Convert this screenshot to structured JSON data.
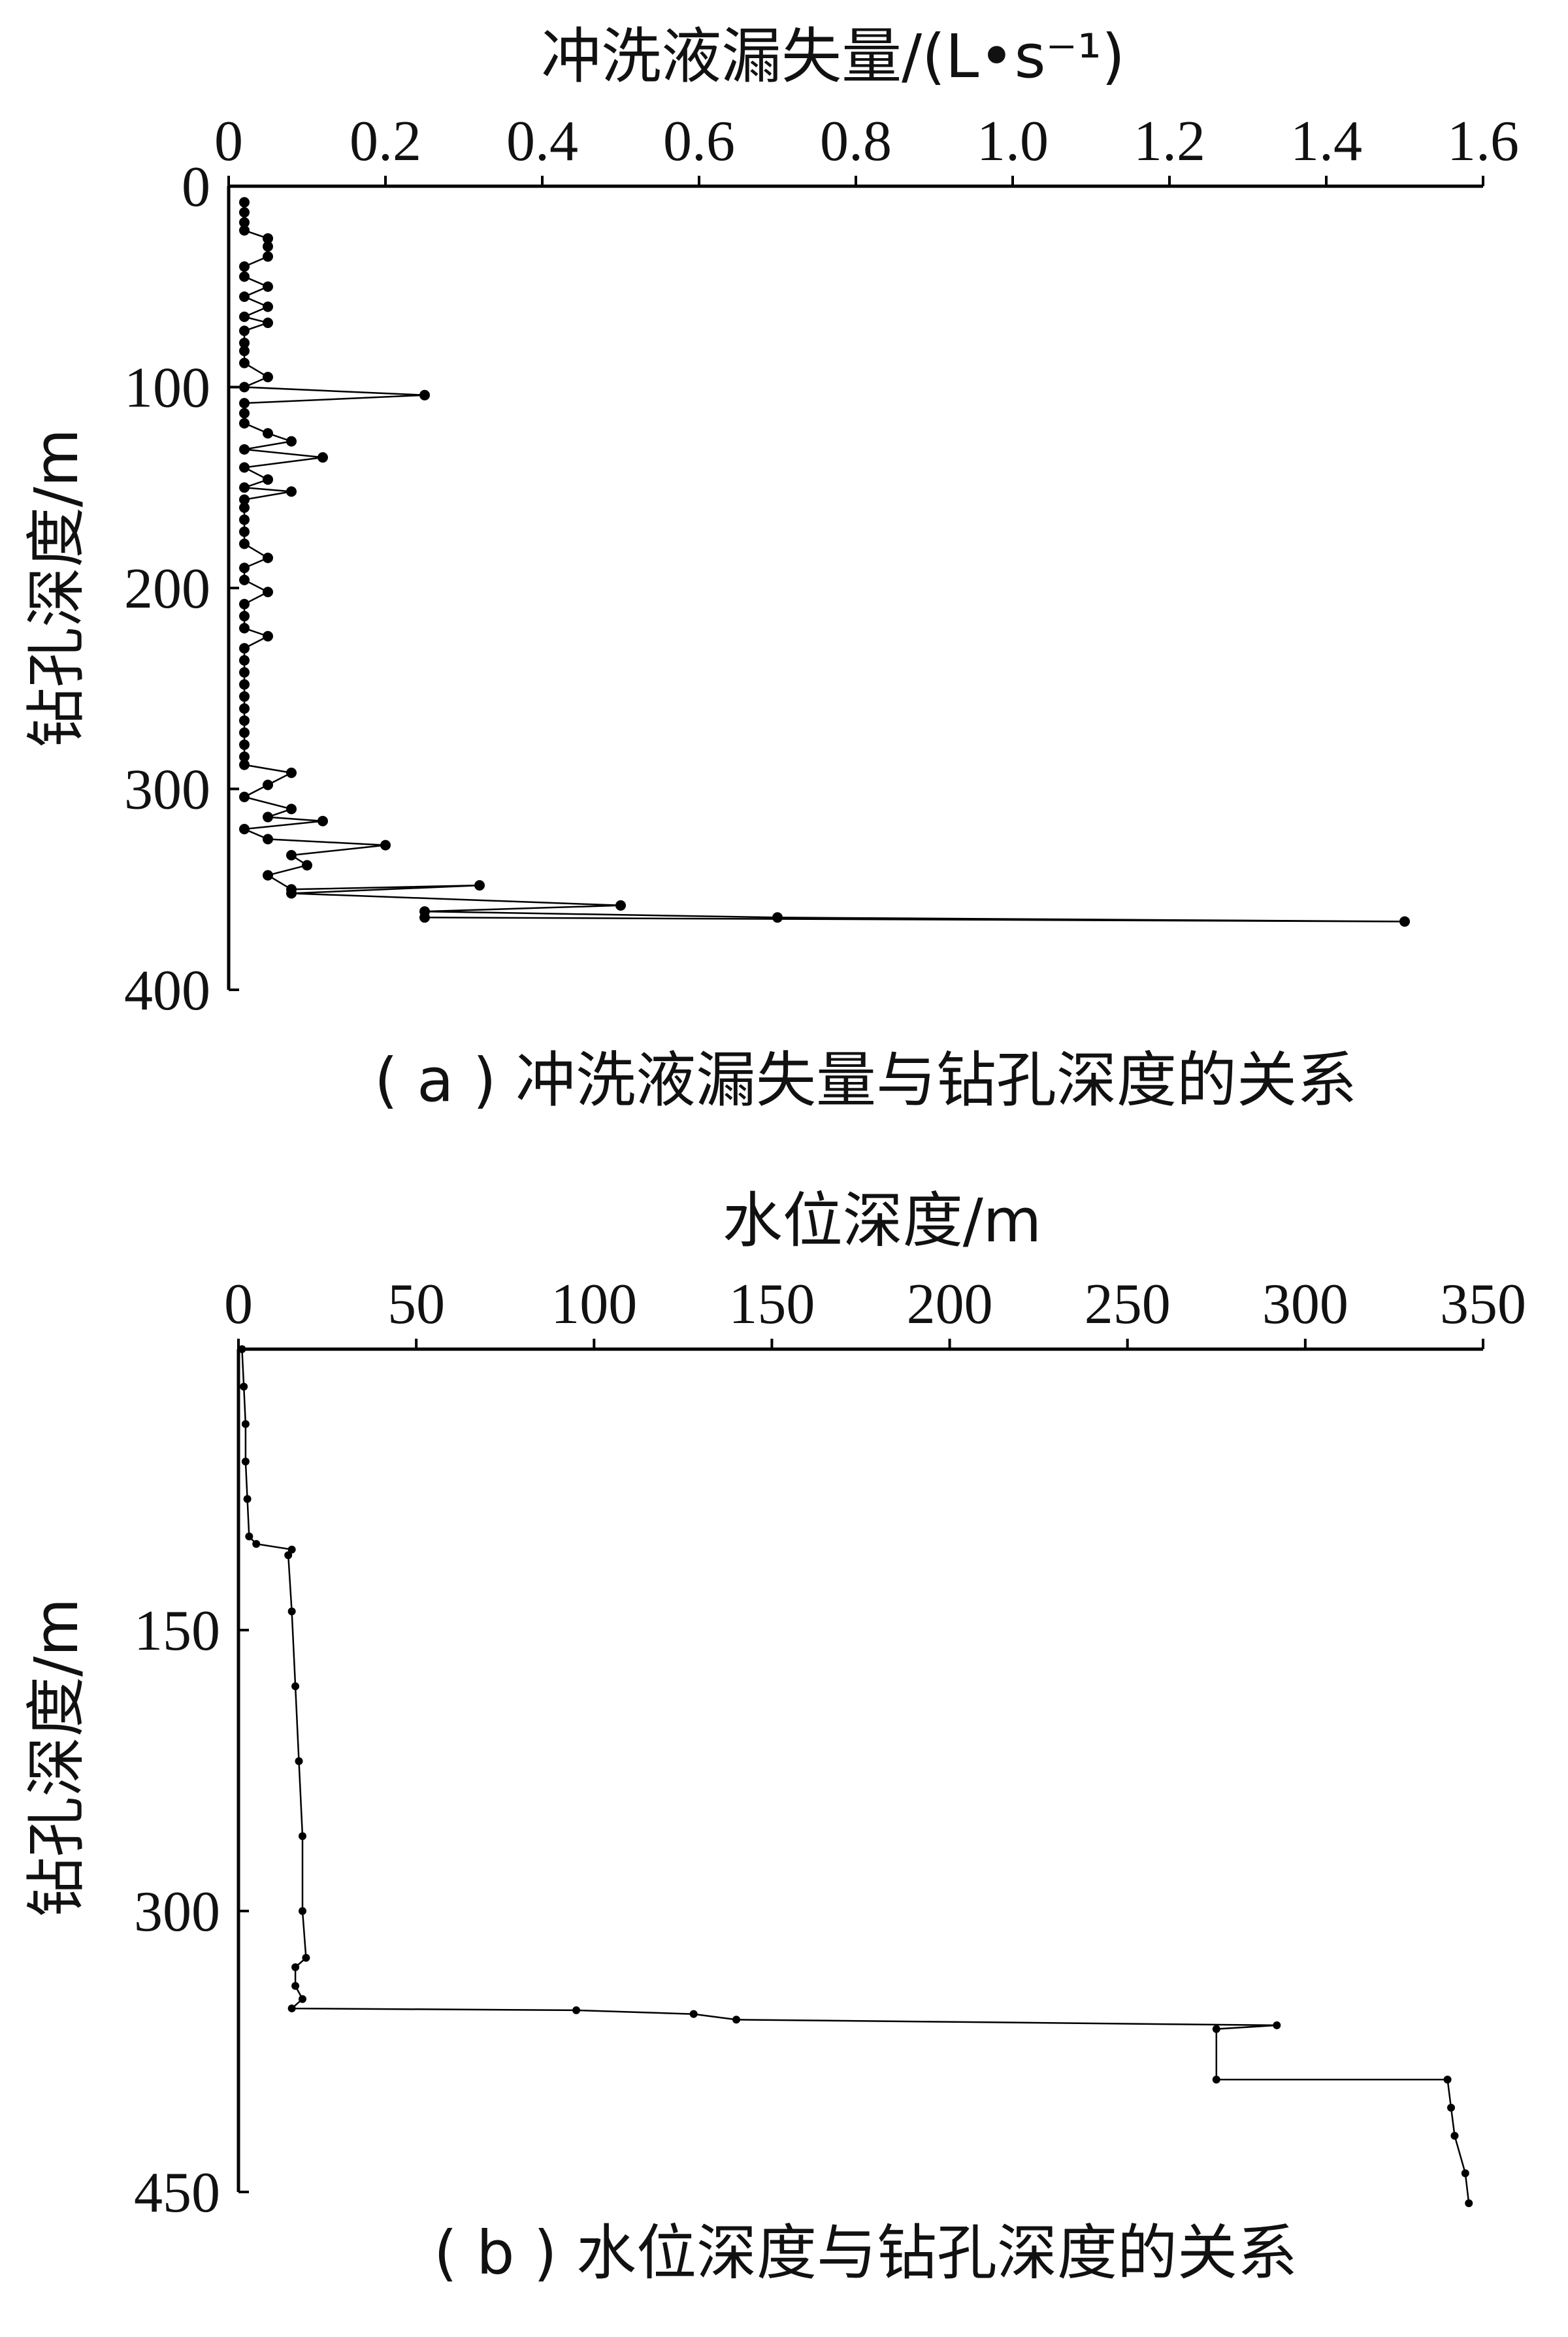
{
  "chart_data": [
    {
      "type": "line",
      "panel": "a",
      "caption": "( a ) 冲洗液漏失量与钻孔深度的关系",
      "xlabel": "冲洗液漏失量/(L•s⁻¹)",
      "ylabel": "钻孔深度/m",
      "xlim": [
        0,
        1.6
      ],
      "ylim": [
        0,
        400
      ],
      "y_inverted": true,
      "x_axis_position": "top",
      "xticks": [
        "0",
        "0.2",
        "0.4",
        "0.6",
        "0.8",
        "1.0",
        "1.2",
        "1.4",
        "1.6"
      ],
      "yticks": [
        "0",
        "100",
        "200",
        "300",
        "400"
      ],
      "series": [
        {
          "points": [
            [
              0.02,
              8
            ],
            [
              0.02,
              13
            ],
            [
              0.02,
              18
            ],
            [
              0.02,
              22
            ],
            [
              0.05,
              26
            ],
            [
              0.05,
              30
            ],
            [
              0.05,
              35
            ],
            [
              0.02,
              40
            ],
            [
              0.02,
              45
            ],
            [
              0.05,
              50
            ],
            [
              0.02,
              55
            ],
            [
              0.05,
              60
            ],
            [
              0.02,
              65
            ],
            [
              0.05,
              68
            ],
            [
              0.02,
              72
            ],
            [
              0.02,
              78
            ],
            [
              0.02,
              82
            ],
            [
              0.02,
              88
            ],
            [
              0.05,
              95
            ],
            [
              0.02,
              100
            ],
            [
              0.25,
              104
            ],
            [
              0.02,
              108
            ],
            [
              0.02,
              113
            ],
            [
              0.02,
              118
            ],
            [
              0.05,
              123
            ],
            [
              0.08,
              127
            ],
            [
              0.02,
              131
            ],
            [
              0.12,
              135
            ],
            [
              0.02,
              140
            ],
            [
              0.05,
              146
            ],
            [
              0.02,
              150
            ],
            [
              0.08,
              152
            ],
            [
              0.02,
              156
            ],
            [
              0.02,
              160
            ],
            [
              0.02,
              166
            ],
            [
              0.02,
              172
            ],
            [
              0.02,
              178
            ],
            [
              0.05,
              185
            ],
            [
              0.02,
              190
            ],
            [
              0.02,
              196
            ],
            [
              0.05,
              202
            ],
            [
              0.02,
              208
            ],
            [
              0.02,
              214
            ],
            [
              0.02,
              220
            ],
            [
              0.05,
              224
            ],
            [
              0.02,
              230
            ],
            [
              0.02,
              236
            ],
            [
              0.02,
              242
            ],
            [
              0.02,
              248
            ],
            [
              0.02,
              254
            ],
            [
              0.02,
              260
            ],
            [
              0.02,
              266
            ],
            [
              0.02,
              272
            ],
            [
              0.02,
              278
            ],
            [
              0.02,
              284
            ],
            [
              0.02,
              288
            ],
            [
              0.08,
              292
            ],
            [
              0.05,
              298
            ],
            [
              0.02,
              304
            ],
            [
              0.08,
              310
            ],
            [
              0.05,
              314
            ],
            [
              0.12,
              316
            ],
            [
              0.02,
              320
            ],
            [
              0.05,
              325
            ],
            [
              0.2,
              328
            ],
            [
              0.08,
              333
            ],
            [
              0.1,
              338
            ],
            [
              0.05,
              343
            ],
            [
              0.08,
              350
            ],
            [
              0.32,
              348
            ],
            [
              0.08,
              352
            ],
            [
              0.5,
              358
            ],
            [
              0.25,
              361
            ],
            [
              0.7,
              364
            ],
            [
              1.5,
              366
            ],
            [
              0.25,
              364
            ]
          ]
        }
      ]
    },
    {
      "type": "line",
      "panel": "b",
      "caption": "( b ) 水位深度与钻孔深度的关系",
      "xlabel": "水位深度/m",
      "ylabel": "钻孔深度/m",
      "xlim": [
        0,
        350
      ],
      "ylim": [
        0,
        450
      ],
      "y_inverted": true,
      "x_axis_position": "top",
      "xticks": [
        "0",
        "50",
        "100",
        "150",
        "200",
        "250",
        "300",
        "350"
      ],
      "yticks": [
        "150",
        "300",
        "450"
      ],
      "series": [
        {
          "points": [
            [
              1,
              0
            ],
            [
              1.5,
              20
            ],
            [
              2,
              40
            ],
            [
              2,
              60
            ],
            [
              2.5,
              80
            ],
            [
              3,
              100
            ],
            [
              5,
              104
            ],
            [
              15,
              107
            ],
            [
              14,
              110
            ],
            [
              15,
              140
            ],
            [
              16,
              180
            ],
            [
              17,
              220
            ],
            [
              18,
              260
            ],
            [
              18,
              300
            ],
            [
              19,
              325
            ],
            [
              16,
              330
            ],
            [
              16,
              340
            ],
            [
              18,
              347
            ],
            [
              15,
              352
            ],
            [
              95,
              353
            ],
            [
              128,
              355
            ],
            [
              140,
              358
            ],
            [
              292,
              361
            ],
            [
              275,
              363
            ],
            [
              275,
              390
            ],
            [
              340,
              390
            ],
            [
              341,
              405
            ],
            [
              342,
              420
            ],
            [
              345,
              440
            ],
            [
              346,
              456
            ]
          ]
        }
      ]
    }
  ]
}
